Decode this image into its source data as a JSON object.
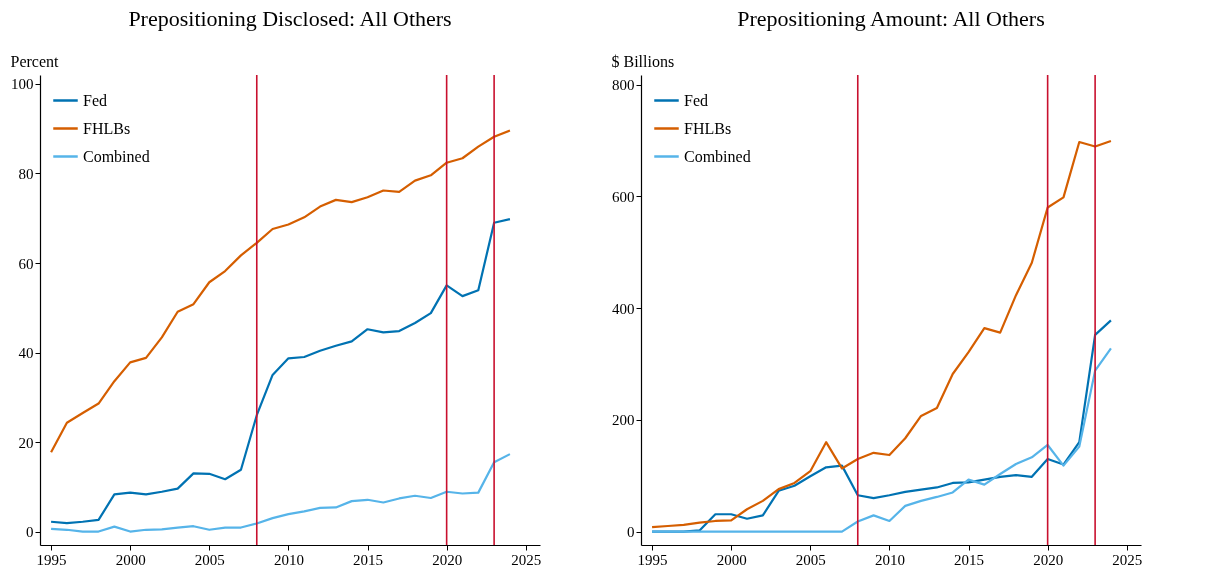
{
  "chart_data": [
    {
      "type": "line",
      "title": "Prepositioning Disclosed: All Others",
      "ylabel": "Percent",
      "x": [
        1995,
        1996,
        1997,
        1998,
        1999,
        2000,
        2001,
        2002,
        2003,
        2004,
        2005,
        2006,
        2007,
        2008,
        2009,
        2010,
        2011,
        2012,
        2013,
        2014,
        2015,
        2016,
        2017,
        2018,
        2019,
        2020,
        2021,
        2022,
        2023,
        2024
      ],
      "series": [
        {
          "name": "Fed",
          "color": "#0072b2",
          "values": [
            2.2,
            1.9,
            2.2,
            2.6,
            8.3,
            8.7,
            8.3,
            8.9,
            9.6,
            13,
            12.9,
            11.7,
            13.8,
            26,
            35,
            38.7,
            39,
            40.4,
            41.5,
            42.5,
            45.2,
            44.5,
            44.8,
            46.6,
            48.8,
            55,
            52.6,
            53.9,
            69,
            69.8
          ]
        },
        {
          "name": "FHLBs",
          "color": "#d55e00",
          "values": [
            17.7,
            24.3,
            26.5,
            28.6,
            33.6,
            37.8,
            38.8,
            43.4,
            49.1,
            50.8,
            55.7,
            58.2,
            61.7,
            64.5,
            67.6,
            68.6,
            70.2,
            72.6,
            74.1,
            73.6,
            74.7,
            76.2,
            75.9,
            78.4,
            79.6,
            82.4,
            83.4,
            86.0,
            88.2,
            89.6
          ]
        },
        {
          "name": "Combined",
          "color": "#56b4e9",
          "values": [
            0.6,
            0.4,
            0,
            0,
            1.1,
            0,
            0.4,
            0.5,
            0.9,
            1.2,
            0.4,
            0.9,
            0.9,
            1.8,
            3,
            3.9,
            4.5,
            5.3,
            5.4,
            6.8,
            7.1,
            6.5,
            7.4,
            8.0,
            7.5,
            8.9,
            8.5,
            8.7,
            15.5,
            17.3
          ]
        }
      ],
      "xlim": [
        1994.3,
        2025.9
      ],
      "xticks": [
        1995,
        2000,
        2005,
        2010,
        2015,
        2020,
        2025
      ],
      "ylim": [
        -3,
        102
      ],
      "yticks": [
        0,
        20,
        40,
        60,
        80,
        100
      ],
      "ref_lines": [
        {
          "axis": "x",
          "value": 2008,
          "color": "#c8102e"
        },
        {
          "axis": "x",
          "value": 2020,
          "color": "#c8102e"
        },
        {
          "axis": "x",
          "value": 2023,
          "color": "#c8102e"
        }
      ],
      "grid": false,
      "legend": "top left"
    },
    {
      "type": "line",
      "title": "Prepositioning Amount: All Others",
      "ylabel": "$ Billions",
      "x": [
        1995,
        1996,
        1997,
        1998,
        1999,
        2000,
        2001,
        2002,
        2003,
        2004,
        2005,
        2006,
        2007,
        2008,
        2009,
        2010,
        2011,
        2012,
        2013,
        2014,
        2015,
        2016,
        2017,
        2018,
        2019,
        2020,
        2021,
        2022,
        2023,
        2024
      ],
      "series": [
        {
          "name": "Fed",
          "color": "#0072b2",
          "values": [
            0,
            0,
            0,
            2,
            31,
            31,
            23,
            29,
            73,
            82,
            99,
            115,
            118,
            65,
            60,
            65,
            71,
            75,
            79,
            87,
            88,
            93,
            98,
            101,
            98,
            130,
            120,
            160,
            352,
            378
          ]
        },
        {
          "name": "FHLBs",
          "color": "#d55e00",
          "values": [
            8,
            10,
            12,
            16,
            19,
            20,
            40,
            55,
            76,
            87,
            108,
            160,
            113,
            130,
            141,
            137,
            167,
            207,
            221,
            282,
            321,
            364,
            356,
            423,
            481,
            580,
            598,
            697,
            689,
            699
          ]
        },
        {
          "name": "Combined",
          "color": "#56b4e9",
          "values": [
            0,
            0,
            0,
            0,
            0,
            0,
            0,
            0,
            0,
            0,
            0,
            0,
            0,
            18,
            29,
            19,
            46,
            55,
            62,
            70,
            93,
            84,
            103,
            121,
            133,
            155,
            118,
            152,
            288,
            328
          ]
        }
      ],
      "xlim": [
        1994.3,
        2025.9
      ],
      "xticks": [
        1995,
        2000,
        2005,
        2010,
        2015,
        2020,
        2025
      ],
      "ylim": [
        -24,
        817
      ],
      "yticks": [
        0,
        200,
        400,
        600,
        800
      ],
      "ref_lines": [
        {
          "axis": "x",
          "value": 2008,
          "color": "#c8102e"
        },
        {
          "axis": "x",
          "value": 2020,
          "color": "#c8102e"
        },
        {
          "axis": "x",
          "value": 2023,
          "color": "#c8102e"
        }
      ],
      "grid": false,
      "legend": "top left"
    }
  ]
}
